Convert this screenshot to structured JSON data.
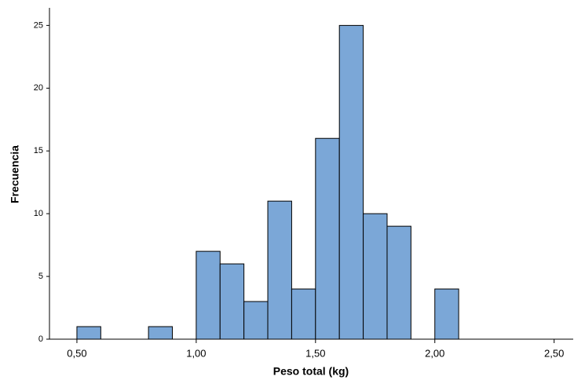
{
  "chart_data": {
    "type": "histogram",
    "x_label": "Peso total (kg)",
    "y_label": "Frecuencia",
    "bins": [
      0.5,
      0.6,
      0.7,
      0.8,
      0.9,
      1.0,
      1.1,
      1.2,
      1.3,
      1.4,
      1.5,
      1.6,
      1.7,
      1.8,
      1.9,
      2.0,
      2.1
    ],
    "values": [
      1,
      0,
      0,
      1,
      0,
      7,
      6,
      3,
      11,
      4,
      16,
      25,
      10,
      9,
      0,
      4
    ],
    "color": "#7ba7d7",
    "xlim": [
      0.385,
      2.58
    ],
    "xticks": [
      {
        "value": 0.5,
        "label": "0,50"
      },
      {
        "value": 1.0,
        "label": "1,00"
      },
      {
        "value": 1.5,
        "label": "1,50"
      },
      {
        "value": 2.0,
        "label": "2,00"
      },
      {
        "value": 2.5,
        "label": "2,50"
      }
    ],
    "ylim": [
      0,
      26.4
    ],
    "yticks": [
      0,
      5,
      10,
      15,
      20,
      25
    ]
  }
}
